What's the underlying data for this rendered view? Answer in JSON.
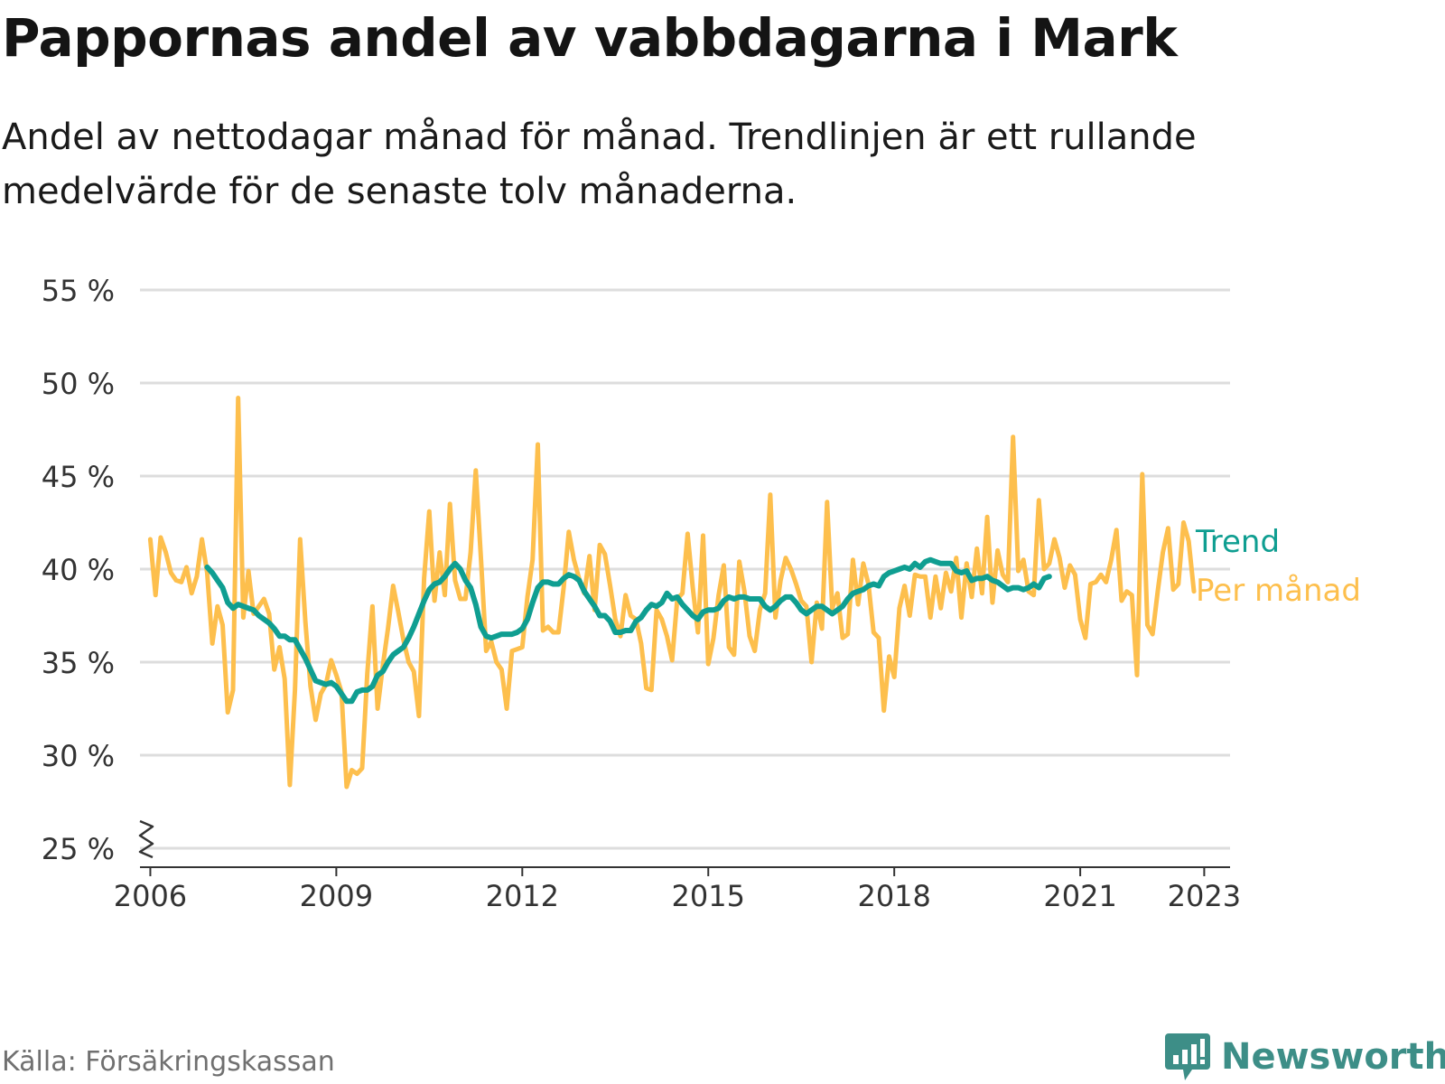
{
  "title": "Pappornas andel av vabbdagarna i Mark",
  "subtitle": "Andel av nettodagar månad för månad. Trendlinjen är ett rullande medelvärde för de senaste tolv månaderna.",
  "source": "Källa: Försäkringskassan",
  "brand": {
    "name": "Newsworthy",
    "icon": "newsworthy-logo-icon"
  },
  "colors": {
    "monthly": "#fdbf4d",
    "trend": "#0f9e91",
    "grid": "#dddddd",
    "axis": "#333333",
    "text": "#333333",
    "brand": "#3d8e87"
  },
  "chart_data": {
    "type": "line",
    "title": "Pappornas andel av vabbdagarna i Mark",
    "xlabel": "",
    "ylabel": "",
    "ylim": [
      25,
      55
    ],
    "xlim": [
      "2005-11",
      "2023-06"
    ],
    "y_ticks": [
      25,
      30,
      35,
      40,
      45,
      50,
      55
    ],
    "y_tick_labels": [
      "25 %",
      "30 %",
      "35 %",
      "40 %",
      "45 %",
      "50 %",
      "55 %"
    ],
    "x_ticks": [
      "2006-01",
      "2009-01",
      "2012-01",
      "2015-01",
      "2018-01",
      "2021-01",
      "2023-01"
    ],
    "x_tick_labels": [
      "2006",
      "2009",
      "2012",
      "2015",
      "2018",
      "2021",
      "2023"
    ],
    "y_axis_break": true,
    "grid": "horizontal",
    "legend": "direct labels at line ends (right)",
    "series": [
      {
        "name": "Per månad",
        "color": "#fdbf4d",
        "x_start": "2006-01",
        "frequency": "monthly",
        "values": [
          41.6,
          38.6,
          41.7,
          40.9,
          39.8,
          39.4,
          39.3,
          40.1,
          38.7,
          39.6,
          41.6,
          39.8,
          36.0,
          38.0,
          37.0,
          32.3,
          33.5,
          49.2,
          37.4,
          39.9,
          37.6,
          38.0,
          38.4,
          37.6,
          34.6,
          35.8,
          34.1,
          28.4,
          33.5,
          41.6,
          37.2,
          33.7,
          31.9,
          33.3,
          33.8,
          35.1,
          34.3,
          33.4,
          28.3,
          29.2,
          29.0,
          29.3,
          34.4,
          38.0,
          32.5,
          34.8,
          36.8,
          39.1,
          37.7,
          36.2,
          35.0,
          34.5,
          32.1,
          39.5,
          43.1,
          38.3,
          40.9,
          38.6,
          43.5,
          39.4,
          38.4,
          38.4,
          40.9,
          45.3,
          40.6,
          35.6,
          36.1,
          35.0,
          34.6,
          32.5,
          35.6,
          35.7,
          35.8,
          38.5,
          40.5,
          46.7,
          36.7,
          36.9,
          36.6,
          36.6,
          39.0,
          42.0,
          40.5,
          39.5,
          38.7,
          40.7,
          37.8,
          41.3,
          40.8,
          39.1,
          37.3,
          36.4,
          38.6,
          37.5,
          37.3,
          36.0,
          33.6,
          33.5,
          37.8,
          37.3,
          36.4,
          35.1,
          38.4,
          38.7,
          41.9,
          39.0,
          36.6,
          41.8,
          34.9,
          36.3,
          38.6,
          40.2,
          35.8,
          35.4,
          40.4,
          38.8,
          36.4,
          35.6,
          37.8,
          38.7,
          44.0,
          37.4,
          39.4,
          40.6,
          40.0,
          39.2,
          38.3,
          38.0,
          35.0,
          38.2,
          36.8,
          43.6,
          37.9,
          38.7,
          36.3,
          36.5,
          40.5,
          38.1,
          40.3,
          39.2,
          36.6,
          36.3,
          32.4,
          35.3,
          34.2,
          37.9,
          39.1,
          37.5,
          39.7,
          39.6,
          39.6,
          37.4,
          39.6,
          37.9,
          39.8,
          38.8,
          40.6,
          37.4,
          40.3,
          38.5,
          41.1,
          38.7,
          42.8,
          38.2,
          41.0,
          39.7,
          39.3,
          47.1,
          39.9,
          40.5,
          38.8,
          38.6,
          43.7,
          40.0,
          40.3,
          41.6,
          40.6,
          39.0,
          40.2,
          39.7,
          37.3,
          36.3,
          39.2,
          39.3,
          39.7,
          39.3,
          40.5,
          42.1,
          38.3,
          38.8,
          38.6,
          34.3,
          45.1,
          37.0,
          36.5,
          38.8,
          40.9,
          42.2,
          38.9,
          39.2,
          42.5,
          41.5,
          38.8
        ]
      },
      {
        "name": "Trend",
        "color": "#0f9e91",
        "x_start": "2006-12",
        "frequency": "monthly",
        "values": [
          40.1,
          39.8,
          39.4,
          39.0,
          38.2,
          37.9,
          38.1,
          38.0,
          37.9,
          37.8,
          37.5,
          37.3,
          37.1,
          36.8,
          36.4,
          36.4,
          36.2,
          36.2,
          35.7,
          35.2,
          34.6,
          34.0,
          33.9,
          33.8,
          33.9,
          33.7,
          33.3,
          32.9,
          32.9,
          33.4,
          33.5,
          33.5,
          33.7,
          34.3,
          34.5,
          35.0,
          35.4,
          35.6,
          35.8,
          36.3,
          36.9,
          37.6,
          38.3,
          38.9,
          39.2,
          39.3,
          39.6,
          40.0,
          40.3,
          40.0,
          39.4,
          39.0,
          38.1,
          36.9,
          36.4,
          36.3,
          36.4,
          36.5,
          36.5,
          36.5,
          36.6,
          36.8,
          37.3,
          38.2,
          39.0,
          39.3,
          39.3,
          39.2,
          39.2,
          39.5,
          39.7,
          39.6,
          39.4,
          38.8,
          38.4,
          38.0,
          37.5,
          37.5,
          37.2,
          36.6,
          36.6,
          36.7,
          36.7,
          37.2,
          37.4,
          37.8,
          38.1,
          38.0,
          38.2,
          38.7,
          38.4,
          38.5,
          38.1,
          37.8,
          37.5,
          37.3,
          37.7,
          37.8,
          37.8,
          37.9,
          38.3,
          38.5,
          38.4,
          38.5,
          38.5,
          38.4,
          38.4,
          38.4,
          38.0,
          37.8,
          38.0,
          38.3,
          38.5,
          38.5,
          38.2,
          37.8,
          37.6,
          37.8,
          38.0,
          38.0,
          37.8,
          37.6,
          37.8,
          38.0,
          38.4,
          38.7,
          38.8,
          38.9,
          39.1,
          39.2,
          39.1,
          39.6,
          39.8,
          39.9,
          40.0,
          40.1,
          40.0,
          40.3,
          40.1,
          40.4,
          40.5,
          40.4,
          40.3,
          40.3,
          40.3,
          39.9,
          39.8,
          39.9,
          39.4,
          39.5,
          39.5,
          39.6,
          39.4,
          39.3,
          39.1,
          38.9,
          39.0,
          39.0,
          38.9,
          39.0,
          39.2,
          39.0,
          39.5,
          39.6
        ]
      }
    ]
  }
}
